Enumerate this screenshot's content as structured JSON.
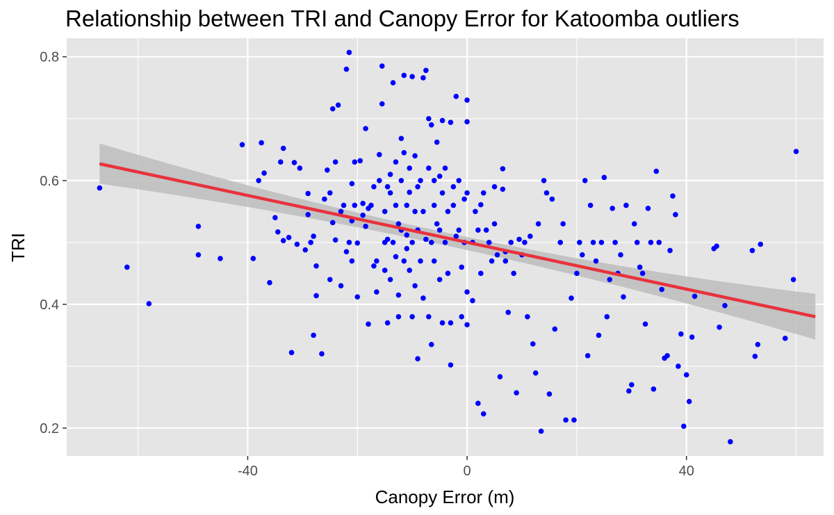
{
  "chart_data": {
    "type": "scatter",
    "title": "Relationship between TRI and Canopy Error for Katoomba outliers",
    "xlabel": "Canopy Error (m)",
    "ylabel": "TRI",
    "xlim": [
      -73,
      65
    ],
    "ylim": [
      0.155,
      0.83
    ],
    "x_ticks": [
      -40,
      0,
      40
    ],
    "x_tick_labels": [
      "-40",
      "0",
      "40"
    ],
    "y_ticks": [
      0.2,
      0.4,
      0.6,
      0.8
    ],
    "y_tick_labels": [
      "0.2",
      "0.4",
      "0.6",
      "0.8"
    ],
    "grid": true,
    "legend": "none",
    "colors": {
      "panel_background": "#e5e5e5",
      "grid": "#ffffff",
      "points": "#0000ff",
      "fit_line": "#e8323c",
      "confidence_band": "#bdbdbd"
    },
    "trend_line": {
      "method": "linear",
      "x_range": [
        -67,
        63.5
      ],
      "start": [
        -67,
        0.627
      ],
      "end": [
        63.5,
        0.38
      ],
      "ci_start": [
        0.595,
        0.66
      ],
      "ci_mid": [
        0.491,
        0.512
      ],
      "ci_end": [
        0.343,
        0.417
      ]
    },
    "points": [
      [
        -67,
        0.588
      ],
      [
        -62,
        0.46
      ],
      [
        -58,
        0.401
      ],
      [
        -49,
        0.526
      ],
      [
        -49,
        0.48
      ],
      [
        -45,
        0.474
      ],
      [
        -41,
        0.658
      ],
      [
        -39,
        0.474
      ],
      [
        -38,
        0.6
      ],
      [
        -37.5,
        0.661
      ],
      [
        -37,
        0.612
      ],
      [
        -36,
        0.435
      ],
      [
        -35,
        0.54
      ],
      [
        -34.5,
        0.517
      ],
      [
        -34,
        0.63
      ],
      [
        -33.5,
        0.503
      ],
      [
        -33.5,
        0.652
      ],
      [
        -32.5,
        0.508
      ],
      [
        -32,
        0.322
      ],
      [
        -31.5,
        0.629
      ],
      [
        -31,
        0.497
      ],
      [
        -30.5,
        0.62
      ],
      [
        -29.5,
        0.488
      ],
      [
        -29,
        0.579
      ],
      [
        -29,
        0.545
      ],
      [
        -28.5,
        0.5
      ],
      [
        -28,
        0.35
      ],
      [
        -28,
        0.51
      ],
      [
        -27.5,
        0.462
      ],
      [
        -27.5,
        0.414
      ],
      [
        -26.5,
        0.32
      ],
      [
        -26,
        0.57
      ],
      [
        -25.5,
        0.617
      ],
      [
        -25,
        0.44
      ],
      [
        -25,
        0.58
      ],
      [
        -24.5,
        0.716
      ],
      [
        -24.5,
        0.532
      ],
      [
        -24,
        0.63
      ],
      [
        -24,
        0.504
      ],
      [
        -23.5,
        0.722
      ],
      [
        -23,
        0.55
      ],
      [
        -23,
        0.43
      ],
      [
        -22.5,
        0.56
      ],
      [
        -22,
        0.485
      ],
      [
        -22,
        0.78
      ],
      [
        -21.5,
        0.807
      ],
      [
        -21.5,
        0.5
      ],
      [
        -21,
        0.595
      ],
      [
        -21,
        0.47
      ],
      [
        -21,
        0.535
      ],
      [
        -20.5,
        0.63
      ],
      [
        -20.5,
        0.56
      ],
      [
        -20,
        0.499
      ],
      [
        -20,
        0.412
      ],
      [
        -19.5,
        0.632
      ],
      [
        -19,
        0.544
      ],
      [
        -19,
        0.563
      ],
      [
        -18.5,
        0.684
      ],
      [
        -18.5,
        0.526
      ],
      [
        -18,
        0.368
      ],
      [
        -18,
        0.555
      ],
      [
        -17.5,
        0.56
      ],
      [
        -17,
        0.462
      ],
      [
        -17,
        0.59
      ],
      [
        -16.5,
        0.42
      ],
      [
        -16.5,
        0.47
      ],
      [
        -16,
        0.6
      ],
      [
        -16,
        0.642
      ],
      [
        -15.5,
        0.724
      ],
      [
        -15.5,
        0.785
      ],
      [
        -15,
        0.55
      ],
      [
        -15,
        0.5
      ],
      [
        -15,
        0.455
      ],
      [
        -14.5,
        0.59
      ],
      [
        -14.5,
        0.505
      ],
      [
        -14.5,
        0.37
      ],
      [
        -14,
        0.61
      ],
      [
        -14,
        0.44
      ],
      [
        -14,
        0.58
      ],
      [
        -13.5,
        0.758
      ],
      [
        -13.5,
        0.5
      ],
      [
        -13,
        0.477
      ],
      [
        -13,
        0.63
      ],
      [
        -13,
        0.56
      ],
      [
        -12.5,
        0.415
      ],
      [
        -12.5,
        0.53
      ],
      [
        -12.5,
        0.38
      ],
      [
        -12,
        0.668
      ],
      [
        -12,
        0.52
      ],
      [
        -12,
        0.6
      ],
      [
        -11.5,
        0.47
      ],
      [
        -11.5,
        0.645
      ],
      [
        -11.5,
        0.77
      ],
      [
        -11,
        0.56
      ],
      [
        -11,
        0.49
      ],
      [
        -11,
        0.512
      ],
      [
        -10.5,
        0.455
      ],
      [
        -10.5,
        0.581
      ],
      [
        -10.5,
        0.62
      ],
      [
        -10,
        0.5
      ],
      [
        -10,
        0.38
      ],
      [
        -10,
        0.768
      ],
      [
        -9.5,
        0.64
      ],
      [
        -9.5,
        0.55
      ],
      [
        -9.5,
        0.43
      ],
      [
        -9,
        0.312
      ],
      [
        -9,
        0.52
      ],
      [
        -9,
        0.59
      ],
      [
        -8.5,
        0.6
      ],
      [
        -8.5,
        0.47
      ],
      [
        -8,
        0.766
      ],
      [
        -8,
        0.55
      ],
      [
        -8,
        0.41
      ],
      [
        -7.5,
        0.778
      ],
      [
        -7.5,
        0.505
      ],
      [
        -7,
        0.7
      ],
      [
        -7,
        0.62
      ],
      [
        -7,
        0.38
      ],
      [
        -6.5,
        0.69
      ],
      [
        -6.5,
        0.5
      ],
      [
        -6.5,
        0.335
      ],
      [
        -6,
        0.6
      ],
      [
        -6,
        0.56
      ],
      [
        -6,
        0.47
      ],
      [
        -5.5,
        0.662
      ],
      [
        -5.5,
        0.53
      ],
      [
        -5,
        0.607
      ],
      [
        -5,
        0.44
      ],
      [
        -5,
        0.52
      ],
      [
        -4.5,
        0.58
      ],
      [
        -4.5,
        0.697
      ],
      [
        -4.5,
        0.37
      ],
      [
        -4,
        0.62
      ],
      [
        -4,
        0.5
      ],
      [
        -3.5,
        0.55
      ],
      [
        -3.5,
        0.45
      ],
      [
        -3,
        0.694
      ],
      [
        -3,
        0.37
      ],
      [
        -3,
        0.302
      ],
      [
        -2.5,
        0.59
      ],
      [
        -2.5,
        0.56
      ],
      [
        -2,
        0.51
      ],
      [
        -2,
        0.736
      ],
      [
        -1.5,
        0.6
      ],
      [
        -1.5,
        0.52
      ],
      [
        -1,
        0.38
      ],
      [
        -1,
        0.46
      ],
      [
        -0.5,
        0.57
      ],
      [
        -0.5,
        0.5
      ],
      [
        0,
        0.695
      ],
      [
        0,
        0.58
      ],
      [
        0,
        0.42
      ],
      [
        0,
        0.367
      ],
      [
        0,
        0.73
      ],
      [
        1,
        0.5
      ],
      [
        1,
        0.406
      ],
      [
        1.5,
        0.55
      ],
      [
        2,
        0.24
      ],
      [
        2,
        0.52
      ],
      [
        2.5,
        0.561
      ],
      [
        2.5,
        0.45
      ],
      [
        3,
        0.58
      ],
      [
        3,
        0.223
      ],
      [
        3.5,
        0.52
      ],
      [
        4,
        0.5
      ],
      [
        4.5,
        0.47
      ],
      [
        5,
        0.59
      ],
      [
        5,
        0.53
      ],
      [
        5.5,
        0.48
      ],
      [
        6,
        0.283
      ],
      [
        6.5,
        0.586
      ],
      [
        6.5,
        0.619
      ],
      [
        7,
        0.47
      ],
      [
        7,
        0.485
      ],
      [
        7.5,
        0.387
      ],
      [
        8,
        0.5
      ],
      [
        8.5,
        0.45
      ],
      [
        9,
        0.257
      ],
      [
        9.5,
        0.505
      ],
      [
        10,
        0.48
      ],
      [
        10.5,
        0.5
      ],
      [
        11,
        0.38
      ],
      [
        11.5,
        0.51
      ],
      [
        12,
        0.336
      ],
      [
        12.5,
        0.289
      ],
      [
        13,
        0.53
      ],
      [
        13.5,
        0.195
      ],
      [
        14,
        0.6
      ],
      [
        14.5,
        0.58
      ],
      [
        15,
        0.255
      ],
      [
        15.5,
        0.57
      ],
      [
        16,
        0.36
      ],
      [
        17,
        0.5
      ],
      [
        17.5,
        0.53
      ],
      [
        18,
        0.213
      ],
      [
        19,
        0.41
      ],
      [
        19.5,
        0.213
      ],
      [
        20,
        0.45
      ],
      [
        20.5,
        0.5
      ],
      [
        21,
        0.48
      ],
      [
        21.5,
        0.6
      ],
      [
        22,
        0.317
      ],
      [
        22.5,
        0.56
      ],
      [
        23,
        0.5
      ],
      [
        23.5,
        0.47
      ],
      [
        24,
        0.35
      ],
      [
        24.5,
        0.5
      ],
      [
        25,
        0.605
      ],
      [
        25.5,
        0.38
      ],
      [
        26,
        0.44
      ],
      [
        26.5,
        0.555
      ],
      [
        27,
        0.5
      ],
      [
        27.5,
        0.45
      ],
      [
        28,
        0.48
      ],
      [
        28.5,
        0.412
      ],
      [
        29,
        0.56
      ],
      [
        29.5,
        0.26
      ],
      [
        30,
        0.27
      ],
      [
        30.5,
        0.53
      ],
      [
        31,
        0.5
      ],
      [
        31.5,
        0.46
      ],
      [
        32,
        0.45
      ],
      [
        32.5,
        0.368
      ],
      [
        33,
        0.555
      ],
      [
        33.5,
        0.5
      ],
      [
        34,
        0.263
      ],
      [
        34.5,
        0.615
      ],
      [
        35,
        0.5
      ],
      [
        35.5,
        0.424
      ],
      [
        36,
        0.313
      ],
      [
        36.5,
        0.317
      ],
      [
        37,
        0.487
      ],
      [
        37.5,
        0.575
      ],
      [
        38,
        0.545
      ],
      [
        38.5,
        0.3
      ],
      [
        39,
        0.352
      ],
      [
        39.5,
        0.203
      ],
      [
        40,
        0.286
      ],
      [
        40.5,
        0.243
      ],
      [
        41,
        0.347
      ],
      [
        41.5,
        0.413
      ],
      [
        45,
        0.49
      ],
      [
        45.5,
        0.494
      ],
      [
        46,
        0.363
      ],
      [
        47,
        0.398
      ],
      [
        48,
        0.178
      ],
      [
        52,
        0.487
      ],
      [
        52.5,
        0.316
      ],
      [
        53,
        0.335
      ],
      [
        53.5,
        0.497
      ],
      [
        58,
        0.345
      ],
      [
        59.5,
        0.44
      ],
      [
        60,
        0.647
      ]
    ]
  }
}
